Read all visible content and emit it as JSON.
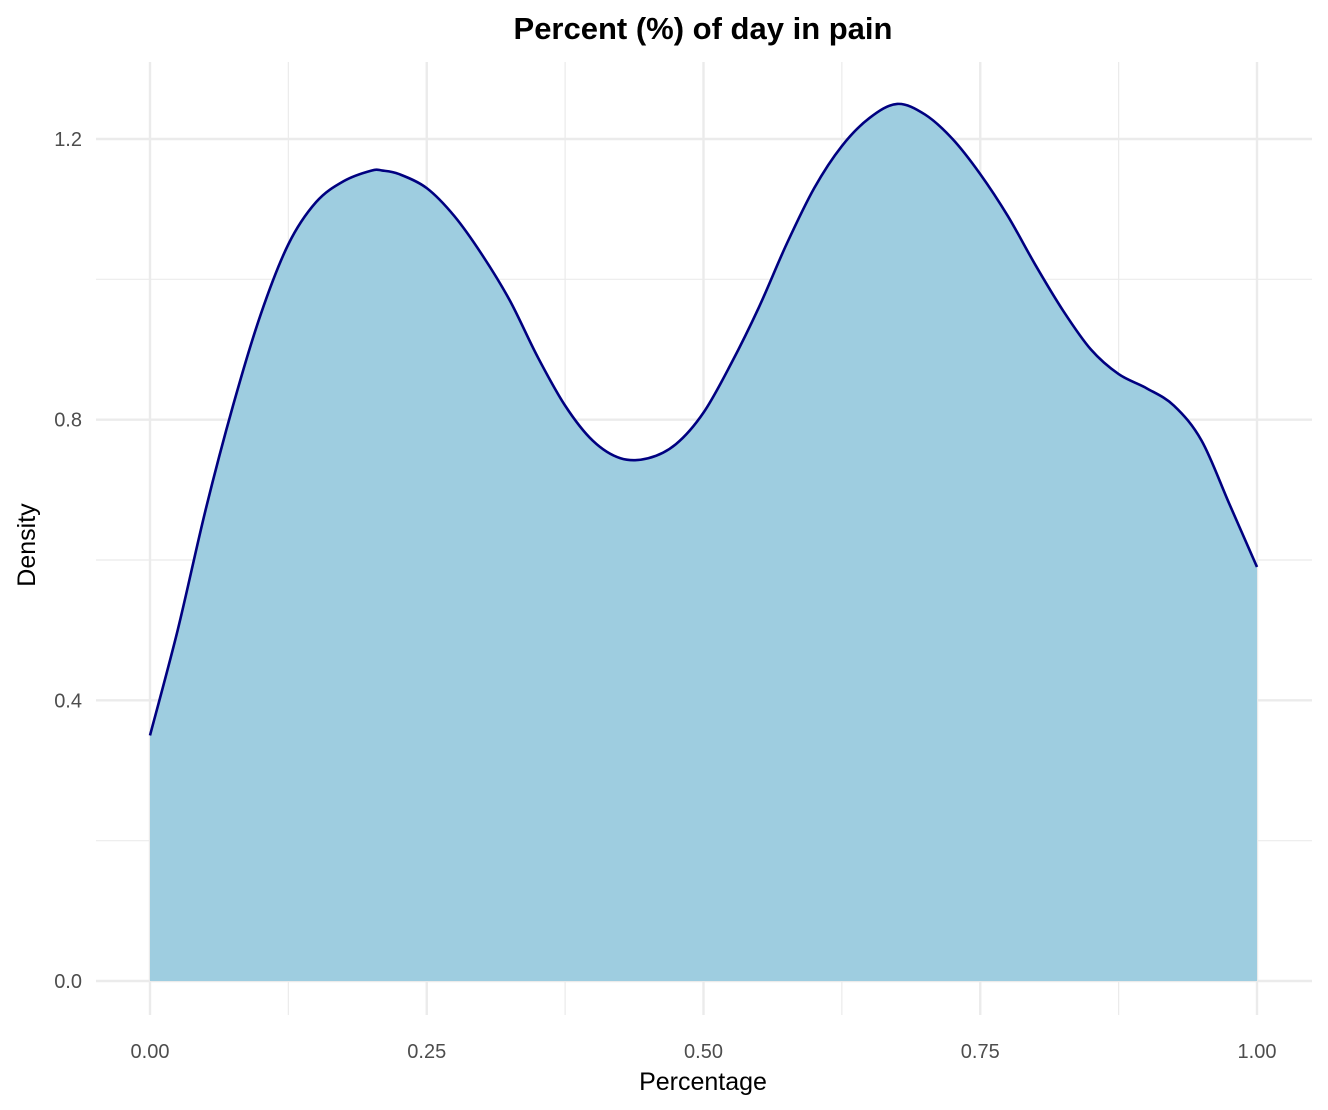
{
  "chart_data": {
    "type": "area",
    "title": "Percent (%) of day in pain",
    "xlabel": "Percentage",
    "ylabel": "Density",
    "xlim": [
      0.0,
      1.0
    ],
    "ylim": [
      0.0,
      1.2
    ],
    "x_ticks": [
      0.0,
      0.25,
      0.5,
      0.75,
      1.0
    ],
    "x_tick_labels": [
      "0.00",
      "0.25",
      "0.50",
      "0.75",
      "1.00"
    ],
    "y_ticks": [
      0.0,
      0.4,
      0.8,
      1.2
    ],
    "y_tick_labels": [
      "0.0",
      "0.4",
      "0.8",
      "1.2"
    ],
    "grid": true,
    "legend": "none",
    "colors": {
      "fill": "#9ecde0",
      "line": "#000080",
      "grid": "#ebebeb"
    },
    "x": [
      0.0,
      0.025,
      0.05,
      0.075,
      0.1,
      0.125,
      0.15,
      0.175,
      0.2,
      0.21,
      0.225,
      0.25,
      0.275,
      0.3,
      0.325,
      0.35,
      0.375,
      0.4,
      0.425,
      0.45,
      0.475,
      0.5,
      0.525,
      0.55,
      0.575,
      0.6,
      0.625,
      0.65,
      0.675,
      0.7,
      0.725,
      0.75,
      0.775,
      0.8,
      0.825,
      0.85,
      0.875,
      0.9,
      0.925,
      0.95,
      0.975,
      1.0
    ],
    "y": [
      0.35,
      0.5,
      0.67,
      0.82,
      0.95,
      1.05,
      1.11,
      1.14,
      1.155,
      1.155,
      1.15,
      1.13,
      1.09,
      1.035,
      0.97,
      0.89,
      0.82,
      0.77,
      0.745,
      0.745,
      0.765,
      0.81,
      0.88,
      0.96,
      1.05,
      1.13,
      1.19,
      1.23,
      1.25,
      1.235,
      1.2,
      1.15,
      1.09,
      1.02,
      0.955,
      0.9,
      0.865,
      0.845,
      0.82,
      0.77,
      0.68,
      0.59
    ]
  }
}
